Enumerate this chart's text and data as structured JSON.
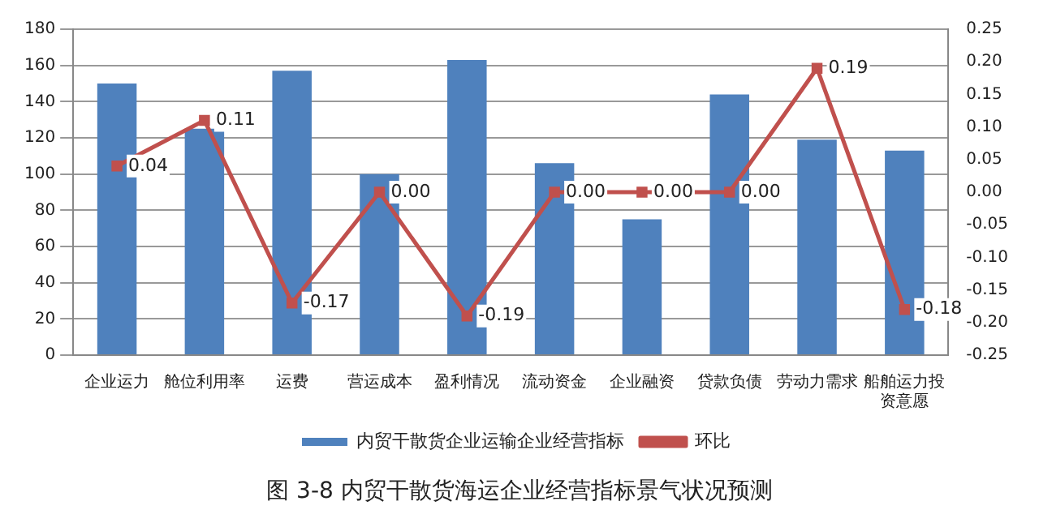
{
  "chart_data": {
    "type": "bar",
    "title": "图 3-8 内贸干散货海运企业经营指标景气状况预测",
    "categories": [
      "企业运力",
      "舱位利用率",
      "运费",
      "营运成本",
      "盈利情况",
      "流动资金",
      "企业融资",
      "贷款负债",
      "劳动力需求",
      "船舶运力投资意愿"
    ],
    "series": [
      {
        "name": "内贸干散货企业运输企业经营指标",
        "color": "#4f81bd",
        "values": [
          150,
          125,
          157,
          100,
          163,
          106,
          75,
          144,
          119,
          113
        ]
      },
      {
        "name": "环比",
        "type": "line",
        "axis": "y2",
        "color": "#c0504d",
        "marker": "square",
        "values": [
          0.04,
          0.11,
          -0.17,
          0.0,
          -0.19,
          0.0,
          0.0,
          0.0,
          0.19,
          -0.18
        ],
        "value_labels": [
          "0.04",
          "0.11",
          "-0.17",
          "0.00",
          "-0.19",
          "0.00",
          "0.00",
          "0.00",
          "0.19",
          "-0.18"
        ]
      }
    ],
    "ylim": [
      0,
      180
    ],
    "yticks": [
      0,
      20,
      40,
      60,
      80,
      100,
      120,
      140,
      160,
      180
    ],
    "y2lim": [
      -0.25,
      0.25
    ],
    "y2ticks": [
      {
        "value": -0.25,
        "label": "-0.25"
      },
      {
        "value": -0.2,
        "label": "-0.20"
      },
      {
        "value": -0.15,
        "label": "-0.15"
      },
      {
        "value": -0.1,
        "label": "-0.10"
      },
      {
        "value": -0.05,
        "label": "-0.05"
      },
      {
        "value": 0,
        "label": "0.00"
      },
      {
        "value": 0.05,
        "label": "0.05"
      },
      {
        "value": 0.1,
        "label": "0.10"
      },
      {
        "value": 0.15,
        "label": "0.15"
      },
      {
        "value": 0.2,
        "label": "0.20"
      },
      {
        "value": 0.25,
        "label": "0.25"
      }
    ],
    "grid": "y",
    "legend": "bottom"
  }
}
